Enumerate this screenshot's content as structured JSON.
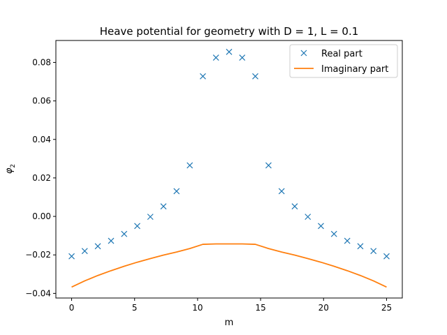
{
  "chart_data": {
    "type": "scatter",
    "title": "Heave potential for geometry with D = 1, L = 0.1",
    "xlabel": "m",
    "ylabel": "φ",
    "ylabel_subscript": "2",
    "xlim": [
      -1.25,
      26.25
    ],
    "ylim": [
      -0.0424,
      0.0914
    ],
    "xticks": [
      0,
      5,
      10,
      15,
      20,
      25
    ],
    "xtick_labels": [
      "0",
      "5",
      "10",
      "15",
      "20",
      "25"
    ],
    "yticks": [
      -0.04,
      -0.02,
      0.0,
      0.02,
      0.04,
      0.06,
      0.08
    ],
    "ytick_labels": [
      "−0.04",
      "−0.02",
      "0.00",
      "0.02",
      "0.04",
      "0.06",
      "0.08"
    ],
    "grid": false,
    "legend_position": "top-right",
    "series": [
      {
        "name": "Real part",
        "style": "markers-x",
        "color": "#1f77b4",
        "x": [
          0.0,
          1.04,
          2.08,
          3.13,
          4.17,
          5.21,
          6.25,
          7.29,
          8.33,
          9.38,
          10.42,
          11.46,
          12.5,
          13.54,
          14.58,
          15.63,
          16.67,
          17.71,
          18.75,
          19.79,
          20.83,
          21.88,
          22.92,
          23.96,
          25.0
        ],
        "y": [
          -0.0207,
          -0.018,
          -0.0155,
          -0.0127,
          -0.0091,
          -0.005,
          -0.0002,
          0.0052,
          0.0131,
          0.0265,
          0.0728,
          0.0825,
          0.0855,
          0.0825,
          0.0728,
          0.0265,
          0.0131,
          0.0052,
          -0.0002,
          -0.005,
          -0.0091,
          -0.0127,
          -0.0155,
          -0.018,
          -0.0207
        ]
      },
      {
        "name": "Imaginary part",
        "style": "line",
        "color": "#ff7f0e",
        "x": [
          0.0,
          1.04,
          2.08,
          3.13,
          4.17,
          5.21,
          6.25,
          7.29,
          8.33,
          9.38,
          10.42,
          11.46,
          12.5,
          13.54,
          14.58,
          15.63,
          16.67,
          17.71,
          18.75,
          19.79,
          20.83,
          21.88,
          22.92,
          23.96,
          25.0
        ],
        "y": [
          -0.0367,
          -0.0335,
          -0.0307,
          -0.0282,
          -0.0259,
          -0.0238,
          -0.0219,
          -0.0201,
          -0.0185,
          -0.0167,
          -0.0145,
          -0.0143,
          -0.0143,
          -0.0143,
          -0.0145,
          -0.0167,
          -0.0185,
          -0.0201,
          -0.0219,
          -0.0238,
          -0.0259,
          -0.0282,
          -0.0307,
          -0.0335,
          -0.0367
        ]
      }
    ]
  }
}
